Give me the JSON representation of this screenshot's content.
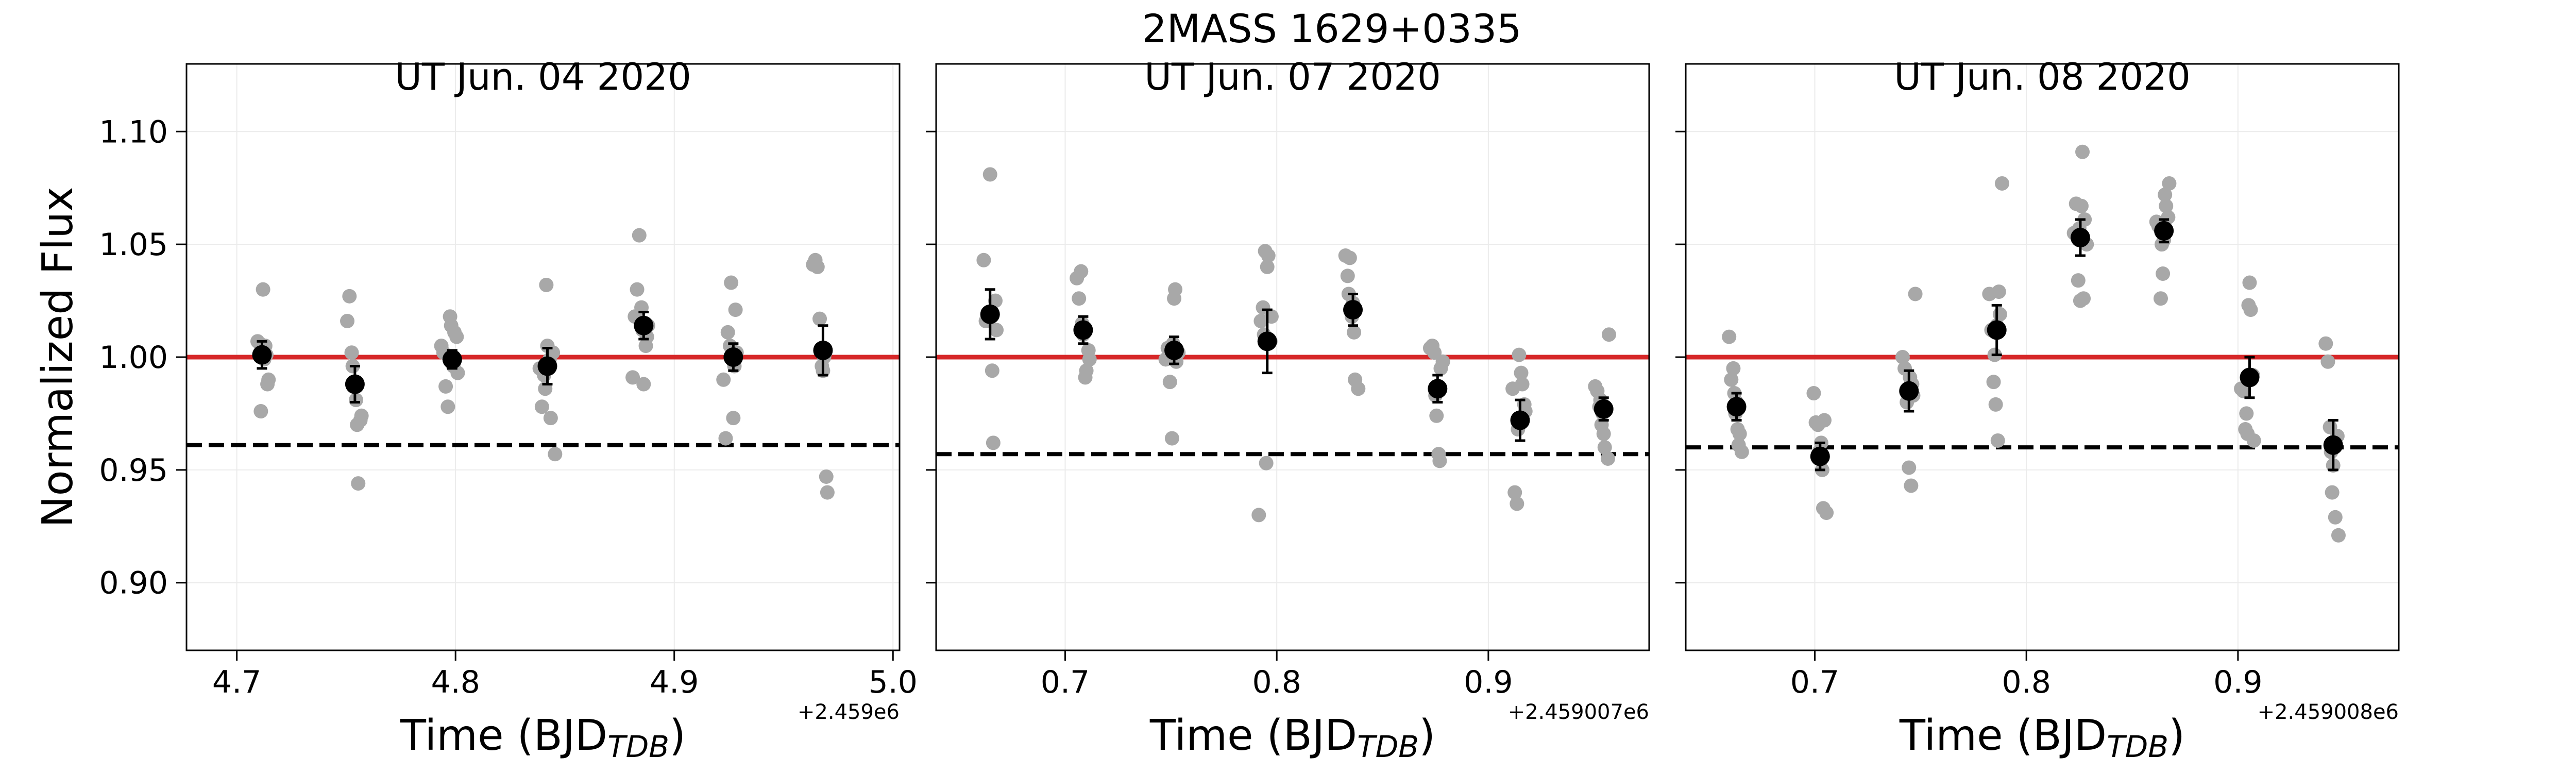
{
  "colors": {
    "raw_points": "#a8a8a8",
    "binned_points": "#000000",
    "reference_line": "#d62728",
    "threshold_line": "#000000",
    "grid": "#ebebeb"
  },
  "chart_data": {
    "type": "scatter",
    "title": "2MASS 1629+0335",
    "ylabel": "Normalized Flux",
    "ylim": [
      0.87,
      1.13
    ],
    "yticks": [
      "0.90",
      "0.95",
      "1.00",
      "1.05",
      "1.10"
    ],
    "reference_line": 1.0,
    "grid": true,
    "panels": [
      {
        "title": "UT Jun. 04 2020",
        "xlabel": "Time (BJD",
        "xlabel_subscript": "TDB",
        "xlabel_close": ")",
        "offset_label": "+2.459e6",
        "xlim": [
          4.677,
          5.003
        ],
        "xticks": [
          "4.7",
          "4.8",
          "4.9",
          "5.0"
        ],
        "threshold": 0.961,
        "raw": [
          [
            4.7095,
            1.007
          ],
          [
            4.7105,
            1.006
          ],
          [
            4.7115,
            1.003
          ],
          [
            4.712,
            1.03
          ],
          [
            4.7125,
            0.999
          ],
          [
            4.711,
            0.976
          ],
          [
            4.714,
            0.988
          ],
          [
            4.7145,
            0.99
          ],
          [
            4.713,
            1.005
          ],
          [
            4.7135,
            1.001
          ],
          [
            4.7505,
            1.016
          ],
          [
            4.7515,
            1.027
          ],
          [
            4.7525,
            1.002
          ],
          [
            4.7535,
            0.987
          ],
          [
            4.7545,
            0.981
          ],
          [
            4.755,
            0.97
          ],
          [
            4.7565,
            0.972
          ],
          [
            4.757,
            0.974
          ],
          [
            4.7555,
            0.944
          ],
          [
            4.753,
            0.996
          ],
          [
            4.7935,
            1.005
          ],
          [
            4.7945,
            1.002
          ],
          [
            4.7955,
            0.987
          ],
          [
            4.7965,
            0.978
          ],
          [
            4.7975,
            1.018
          ],
          [
            4.798,
            1.014
          ],
          [
            4.7995,
            1.011
          ],
          [
            4.8005,
            1.009
          ],
          [
            4.801,
            0.993
          ],
          [
            4.799,
            0.996
          ],
          [
            4.8385,
            0.995
          ],
          [
            4.8395,
            0.978
          ],
          [
            4.8405,
            0.992
          ],
          [
            4.8415,
            1.032
          ],
          [
            4.842,
            1.005
          ],
          [
            4.8435,
            0.973
          ],
          [
            4.8445,
            1.002
          ],
          [
            4.8455,
            0.957
          ],
          [
            4.843,
            0.999
          ],
          [
            4.841,
            0.986
          ],
          [
            4.881,
            0.991
          ],
          [
            4.882,
            1.018
          ],
          [
            4.883,
            1.03
          ],
          [
            4.884,
            1.054
          ],
          [
            4.8855,
            1.012
          ],
          [
            4.886,
            0.988
          ],
          [
            4.887,
            1.005
          ],
          [
            4.888,
            1.014
          ],
          [
            4.885,
            1.022
          ],
          [
            4.8875,
            1.009
          ],
          [
            4.9225,
            0.99
          ],
          [
            4.9235,
            0.964
          ],
          [
            4.9245,
            1.011
          ],
          [
            4.9255,
            1.005
          ],
          [
            4.926,
            1.033
          ],
          [
            4.927,
            0.973
          ],
          [
            4.928,
            1.021
          ],
          [
            4.9285,
            1.002
          ],
          [
            4.9275,
            0.996
          ],
          [
            4.9265,
            0.999
          ],
          [
            4.9635,
            1.041
          ],
          [
            4.9645,
            1.043
          ],
          [
            4.9655,
            1.04
          ],
          [
            4.9665,
            1.017
          ],
          [
            4.9675,
            0.996
          ],
          [
            4.968,
            0.994
          ],
          [
            4.9695,
            0.947
          ],
          [
            4.97,
            0.94
          ],
          [
            4.9685,
            1.0
          ],
          [
            4.969,
            1.002
          ]
        ],
        "binned": [
          {
            "x": 4.7115,
            "y": 1.001,
            "err": 0.006
          },
          {
            "x": 4.754,
            "y": 0.988,
            "err": 0.008
          },
          {
            "x": 4.7985,
            "y": 0.999,
            "err": 0.004
          },
          {
            "x": 4.842,
            "y": 0.996,
            "err": 0.008
          },
          {
            "x": 4.886,
            "y": 1.014,
            "err": 0.006
          },
          {
            "x": 4.927,
            "y": 1.0,
            "err": 0.006
          },
          {
            "x": 4.968,
            "y": 1.003,
            "err": 0.011
          }
        ]
      },
      {
        "title": "UT Jun. 07 2020",
        "xlabel": "Time (BJD",
        "xlabel_subscript": "TDB",
        "xlabel_close": ")",
        "offset_label": "+2.459007e6",
        "xlim": [
          0.639,
          0.976
        ],
        "xticks": [
          "0.7",
          "0.8",
          "0.9"
        ],
        "threshold": 0.957,
        "raw": [
          [
            0.6615,
            1.043
          ],
          [
            0.6625,
            1.016
          ],
          [
            0.6635,
            1.019
          ],
          [
            0.6645,
            1.081
          ],
          [
            0.6655,
            0.994
          ],
          [
            0.666,
            0.962
          ],
          [
            0.667,
            1.025
          ],
          [
            0.6675,
            1.012
          ],
          [
            0.665,
            1.02
          ],
          [
            0.664,
            1.017
          ],
          [
            0.7055,
            1.035
          ],
          [
            0.7065,
            1.026
          ],
          [
            0.7075,
            1.038
          ],
          [
            0.7085,
            1.01
          ],
          [
            0.7095,
            0.991
          ],
          [
            0.71,
            0.994
          ],
          [
            0.711,
            1.003
          ],
          [
            0.7115,
            0.999
          ],
          [
            0.709,
            1.012
          ],
          [
            0.708,
            1.015
          ],
          [
            0.7475,
            0.999
          ],
          [
            0.7485,
            1.004
          ],
          [
            0.7495,
            0.989
          ],
          [
            0.7505,
            0.964
          ],
          [
            0.7515,
            1.026
          ],
          [
            0.752,
            1.03
          ],
          [
            0.7535,
            1.002
          ],
          [
            0.7525,
            0.998
          ],
          [
            0.751,
            1.006
          ],
          [
            0.75,
            1.001
          ],
          [
            0.7915,
            0.93
          ],
          [
            0.7925,
            1.016
          ],
          [
            0.7935,
            1.022
          ],
          [
            0.7945,
            1.047
          ],
          [
            0.7955,
            1.04
          ],
          [
            0.796,
            1.045
          ],
          [
            0.7975,
            1.018
          ],
          [
            0.795,
            0.953
          ],
          [
            0.794,
            1.01
          ],
          [
            0.797,
            1.007
          ],
          [
            0.8325,
            1.045
          ],
          [
            0.8335,
            1.036
          ],
          [
            0.8345,
            1.044
          ],
          [
            0.8355,
            1.018
          ],
          [
            0.8365,
            1.011
          ],
          [
            0.837,
            0.99
          ],
          [
            0.8385,
            0.986
          ],
          [
            0.836,
            1.024
          ],
          [
            0.835,
            1.021
          ],
          [
            0.834,
            1.028
          ],
          [
            0.8725,
            1.004
          ],
          [
            0.8735,
            1.005
          ],
          [
            0.8745,
            1.002
          ],
          [
            0.8755,
            0.974
          ],
          [
            0.8765,
            0.957
          ],
          [
            0.877,
            0.954
          ],
          [
            0.8785,
            0.998
          ],
          [
            0.876,
            0.986
          ],
          [
            0.875,
            0.983
          ],
          [
            0.8775,
            0.995
          ],
          [
            0.9115,
            0.986
          ],
          [
            0.9125,
            0.94
          ],
          [
            0.9135,
            0.935
          ],
          [
            0.9145,
            1.001
          ],
          [
            0.9155,
            0.993
          ],
          [
            0.916,
            0.988
          ],
          [
            0.9175,
            0.976
          ],
          [
            0.915,
            0.971
          ],
          [
            0.914,
            0.968
          ],
          [
            0.917,
            0.979
          ],
          [
            0.9505,
            0.987
          ],
          [
            0.9515,
            0.985
          ],
          [
            0.9525,
            0.978
          ],
          [
            0.9535,
            0.97
          ],
          [
            0.9545,
            0.966
          ],
          [
            0.955,
            0.96
          ],
          [
            0.9565,
            0.955
          ],
          [
            0.957,
            1.01
          ],
          [
            0.954,
            0.975
          ],
          [
            0.953,
            0.981
          ]
        ],
        "binned": [
          {
            "x": 0.6645,
            "y": 1.019,
            "err": 0.011
          },
          {
            "x": 0.7085,
            "y": 1.012,
            "err": 0.006
          },
          {
            "x": 0.7515,
            "y": 1.003,
            "err": 0.006
          },
          {
            "x": 0.7955,
            "y": 1.007,
            "err": 0.014
          },
          {
            "x": 0.836,
            "y": 1.021,
            "err": 0.007
          },
          {
            "x": 0.876,
            "y": 0.986,
            "err": 0.006
          },
          {
            "x": 0.915,
            "y": 0.972,
            "err": 0.009
          },
          {
            "x": 0.9545,
            "y": 0.977,
            "err": 0.005
          }
        ]
      },
      {
        "title": "UT Jun. 08 2020",
        "xlabel": "Time (BJD",
        "xlabel_subscript": "TDB",
        "xlabel_close": ")",
        "offset_label": "+2.459008e6",
        "xlim": [
          0.639,
          0.976
        ],
        "xticks": [
          "0.7",
          "0.8",
          "0.9"
        ],
        "threshold": 0.96,
        "raw": [
          [
            0.6595,
            1.009
          ],
          [
            0.6605,
            0.99
          ],
          [
            0.6615,
            0.995
          ],
          [
            0.6625,
            0.975
          ],
          [
            0.6635,
            0.968
          ],
          [
            0.664,
            0.961
          ],
          [
            0.6655,
            0.958
          ],
          [
            0.663,
            0.98
          ],
          [
            0.662,
            0.984
          ],
          [
            0.6645,
            0.966
          ],
          [
            0.6995,
            0.984
          ],
          [
            0.7005,
            0.971
          ],
          [
            0.7015,
            0.97
          ],
          [
            0.7025,
            0.955
          ],
          [
            0.7035,
            0.95
          ],
          [
            0.704,
            0.933
          ],
          [
            0.7055,
            0.931
          ],
          [
            0.703,
            0.962
          ],
          [
            0.702,
            0.958
          ],
          [
            0.7045,
            0.972
          ],
          [
            0.7415,
            1.0
          ],
          [
            0.7425,
            0.995
          ],
          [
            0.7435,
            0.98
          ],
          [
            0.7445,
            0.951
          ],
          [
            0.7455,
            0.943
          ],
          [
            0.746,
            0.988
          ],
          [
            0.7475,
            1.028
          ],
          [
            0.745,
            0.991
          ],
          [
            0.744,
            0.986
          ],
          [
            0.7465,
            0.983
          ],
          [
            0.7825,
            1.028
          ],
          [
            0.7835,
            1.012
          ],
          [
            0.7845,
            0.989
          ],
          [
            0.7855,
            0.979
          ],
          [
            0.7865,
            0.963
          ],
          [
            0.787,
            1.029
          ],
          [
            0.7885,
            1.077
          ],
          [
            0.786,
            1.014
          ],
          [
            0.785,
            1.001
          ],
          [
            0.7875,
            1.019
          ],
          [
            0.8225,
            1.055
          ],
          [
            0.8235,
            1.068
          ],
          [
            0.8245,
            1.034
          ],
          [
            0.8255,
            1.025
          ],
          [
            0.8265,
            1.091
          ],
          [
            0.827,
            1.026
          ],
          [
            0.8285,
            1.05
          ],
          [
            0.826,
            1.067
          ],
          [
            0.825,
            1.057
          ],
          [
            0.8275,
            1.061
          ],
          [
            0.8615,
            1.06
          ],
          [
            0.8625,
            1.058
          ],
          [
            0.8635,
            1.026
          ],
          [
            0.8645,
            1.037
          ],
          [
            0.8655,
            1.072
          ],
          [
            0.866,
            1.067
          ],
          [
            0.8675,
            1.077
          ],
          [
            0.865,
            1.052
          ],
          [
            0.864,
            1.05
          ],
          [
            0.867,
            1.062
          ],
          [
            0.9015,
            0.986
          ],
          [
            0.9025,
            0.985
          ],
          [
            0.9035,
            0.968
          ],
          [
            0.9045,
            0.966
          ],
          [
            0.9055,
            1.033
          ],
          [
            0.906,
            1.021
          ],
          [
            0.9075,
            0.963
          ],
          [
            0.905,
            1.023
          ],
          [
            0.904,
            0.975
          ],
          [
            0.907,
            0.992
          ],
          [
            0.9415,
            1.006
          ],
          [
            0.9425,
            0.998
          ],
          [
            0.9435,
            0.969
          ],
          [
            0.9445,
            0.94
          ],
          [
            0.9455,
            0.962
          ],
          [
            0.946,
            0.929
          ],
          [
            0.9475,
            0.921
          ],
          [
            0.945,
            0.952
          ],
          [
            0.944,
            0.958
          ],
          [
            0.947,
            0.965
          ]
        ],
        "binned": [
          {
            "x": 0.663,
            "y": 0.978,
            "err": 0.006
          },
          {
            "x": 0.7025,
            "y": 0.956,
            "err": 0.006
          },
          {
            "x": 0.7445,
            "y": 0.985,
            "err": 0.009
          },
          {
            "x": 0.786,
            "y": 1.012,
            "err": 0.011
          },
          {
            "x": 0.8255,
            "y": 1.053,
            "err": 0.008
          },
          {
            "x": 0.865,
            "y": 1.056,
            "err": 0.005
          },
          {
            "x": 0.9055,
            "y": 0.991,
            "err": 0.009
          },
          {
            "x": 0.945,
            "y": 0.961,
            "err": 0.011
          }
        ]
      }
    ]
  }
}
